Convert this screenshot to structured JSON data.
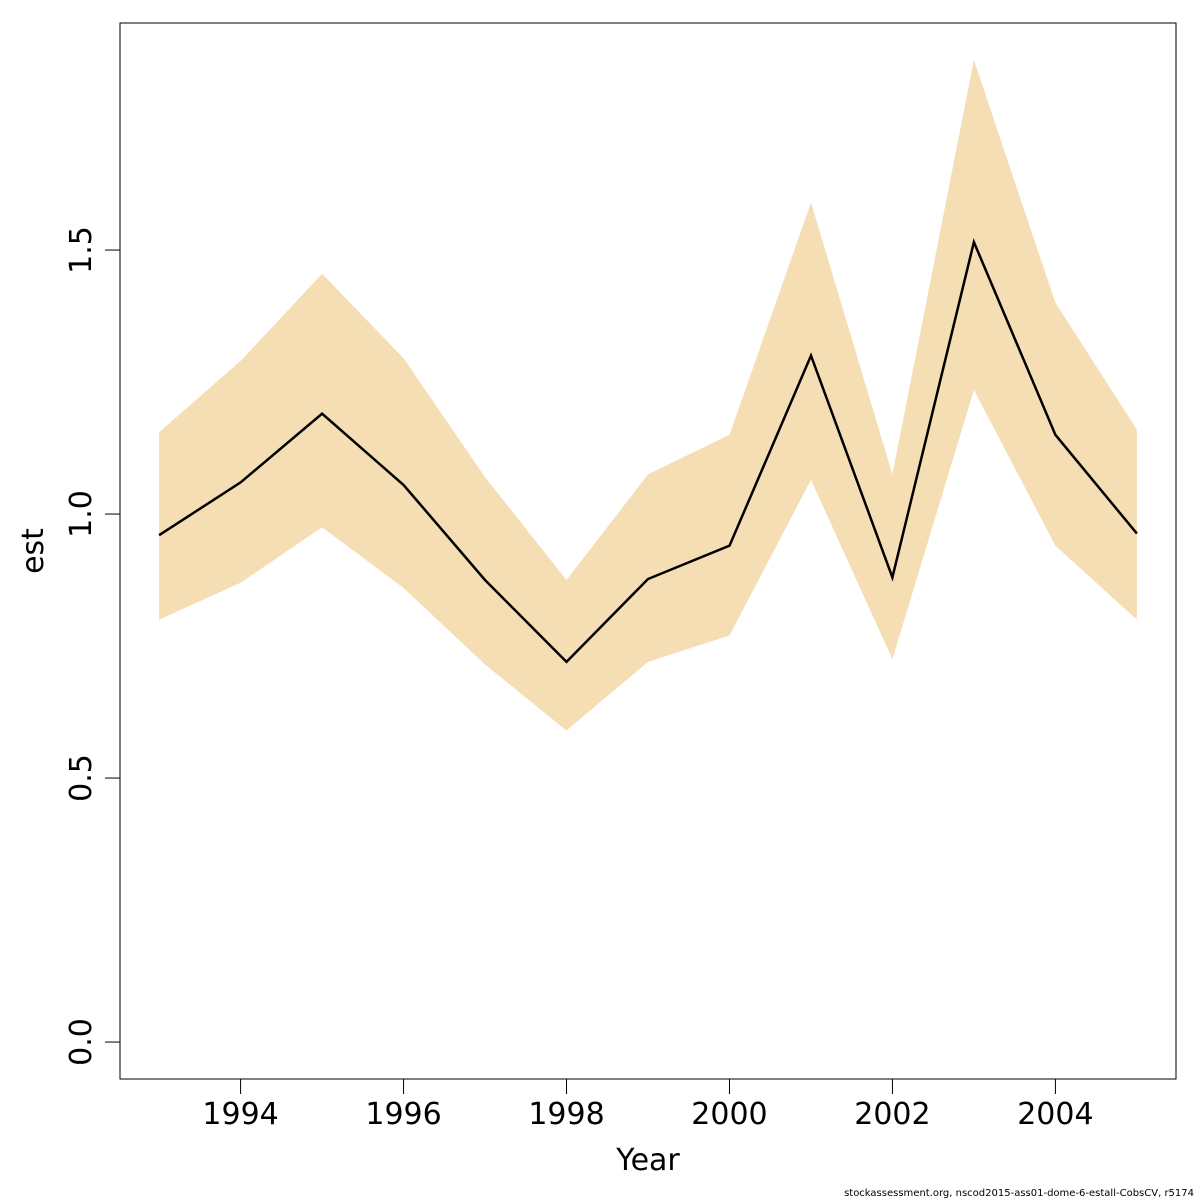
{
  "chart_data": {
    "type": "line",
    "xlabel": "Year",
    "ylabel": "est",
    "xlim": [
      1992.52,
      2005.48
    ],
    "ylim": [
      -0.07,
      1.93
    ],
    "x_ticks": [
      1994,
      1996,
      1998,
      2000,
      2002,
      2004
    ],
    "x_tick_labels": [
      "1994",
      "1996",
      "1998",
      "2000",
      "2002",
      "2004"
    ],
    "y_ticks": [
      0.0,
      0.5,
      1.0,
      1.5
    ],
    "y_tick_labels": [
      "0.0",
      "0.5",
      "1.0",
      "1.5"
    ],
    "grid": false,
    "x": [
      1993,
      1994,
      1995,
      1996,
      1997,
      1998,
      1999,
      2000,
      2001,
      2002,
      2003,
      2004,
      2005
    ],
    "series": [
      {
        "values": [
          0.96,
          1.06,
          1.19,
          1.055,
          0.875,
          0.72,
          0.877,
          0.94,
          1.3,
          0.88,
          1.515,
          1.15,
          0.963
        ],
        "lower": [
          0.8,
          0.87,
          0.975,
          0.86,
          0.715,
          0.59,
          0.72,
          0.77,
          1.065,
          0.725,
          1.235,
          0.94,
          0.8
        ],
        "upper": [
          1.155,
          1.29,
          1.455,
          1.295,
          1.07,
          0.875,
          1.075,
          1.15,
          1.59,
          1.075,
          1.86,
          1.4,
          1.16
        ],
        "line_color": "#000000",
        "band_color": "#F5DEB3"
      }
    ]
  },
  "footnote": "stockassessment.org, nscod2015-ass01-dome-6-estall-CobsCV, r5174"
}
